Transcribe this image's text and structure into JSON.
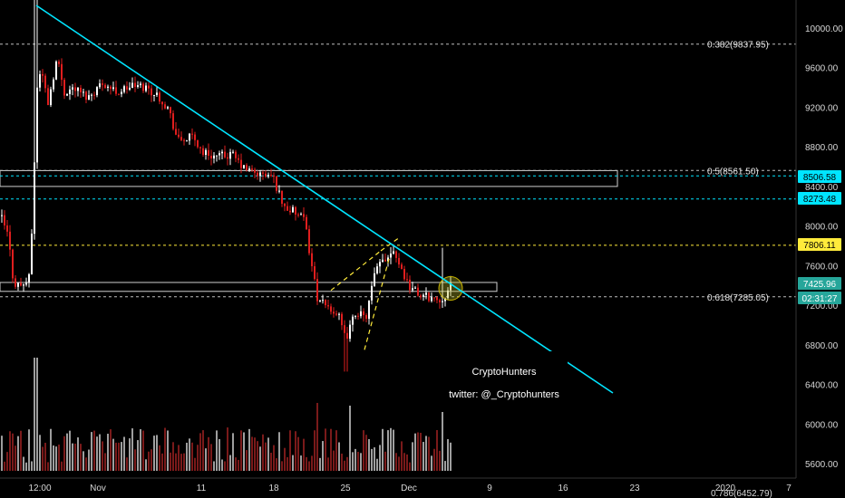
{
  "chart_data": {
    "type": "candlestick",
    "y_axis": {
      "range": [
        5500,
        10300
      ],
      "ticks": [
        "5600.00",
        "6000.00",
        "6400.00",
        "6800.00",
        "7200.00",
        "7600.00",
        "8000.00",
        "8400.00",
        "8800.00",
        "9200.00",
        "9600.00",
        "10000.00"
      ]
    },
    "x_axis": {
      "ticks": [
        "12:00",
        "Nov",
        "11",
        "18",
        "25",
        "Dec",
        "9",
        "16",
        "23",
        "2020",
        "7"
      ]
    },
    "fib_levels": [
      {
        "label": "0.382(9837.95)",
        "value": 9837.95
      },
      {
        "label": "0.5(8561.50)",
        "value": 8561.5
      },
      {
        "label": "0.618(7285.05)",
        "value": 7285.05
      }
    ],
    "horizontal_lines": [
      {
        "value": 8506.58,
        "color": "#00e5ff",
        "dashed": true
      },
      {
        "value": 8273.48,
        "color": "#00e5ff",
        "dashed": true
      },
      {
        "value": 7806.11,
        "color": "#ffeb3b",
        "dashed": true
      }
    ],
    "price_badges": [
      {
        "text": "8506.58",
        "bg": "#00e5ff",
        "fg": "#000000",
        "value": 8506.58
      },
      {
        "text": "8273.48",
        "bg": "#00e5ff",
        "fg": "#000000",
        "value": 8273.48
      },
      {
        "text": "7806.11",
        "bg": "#ffeb3b",
        "fg": "#000000",
        "value": 7806.11
      },
      {
        "text": "7425.96",
        "bg": "#26a69a",
        "fg": "#ffffff",
        "value": 7425.96
      },
      {
        "text": "02:31:27",
        "bg": "#26a69a",
        "fg": "#ffffff",
        "value": 7200
      }
    ],
    "zones": [
      {
        "y1": 8400,
        "y2": 8560,
        "x_end_label": "about 20 Dec"
      },
      {
        "y1": 7340,
        "y2": 7430,
        "x_end_label": "about 7 Dec"
      }
    ],
    "trendline": {
      "color": "#00e5ff",
      "from_price": 10300,
      "to_price": 6300
    },
    "key_prices": {
      "high": 10540,
      "low": 6530,
      "last": 7425.96
    },
    "colors": {
      "up": "#ffffff",
      "down": "#e01e1e",
      "volume_up": "#9e9e9e",
      "volume_down": "#7a1a1a"
    },
    "annotations": {
      "title": "CryptoHunters",
      "twitter": "twitter: @_Cryptohunters"
    },
    "axis_extra_label": "0.786(6452.79)"
  }
}
